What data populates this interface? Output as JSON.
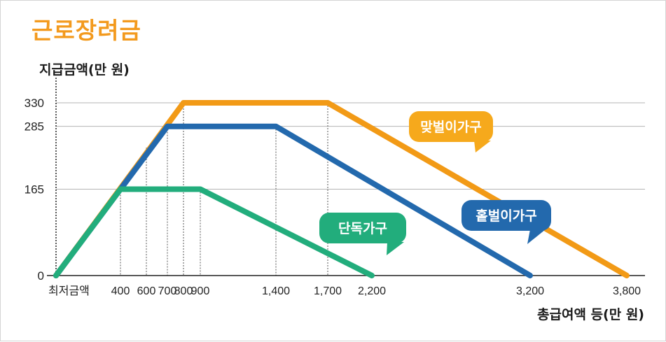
{
  "header": {
    "title": "근로장려금"
  },
  "chart_data": {
    "type": "line",
    "title": "근로장려금",
    "ylabel": "지급금액(만 원)",
    "xlabel": "총급여액 등(만 원)",
    "x_ticks": [
      {
        "value": 0,
        "label": "최저금액"
      },
      {
        "value": 400,
        "label": "400"
      },
      {
        "value": 600,
        "label": "600"
      },
      {
        "value": 700,
        "label": "700"
      },
      {
        "value": 800,
        "label": "800"
      },
      {
        "value": 900,
        "label": "900"
      },
      {
        "value": 1400,
        "label": "1,400"
      },
      {
        "value": 1700,
        "label": "1,700"
      },
      {
        "value": 2200,
        "label": "2,200"
      },
      {
        "value": 3200,
        "label": "3,200"
      },
      {
        "value": 3800,
        "label": "3,800"
      }
    ],
    "y_ticks": [
      {
        "value": 0,
        "label": "0"
      },
      {
        "value": 165,
        "label": "165"
      },
      {
        "value": 285,
        "label": "285"
      },
      {
        "value": 330,
        "label": "330"
      }
    ],
    "xlim": [
      0,
      3800
    ],
    "ylim": [
      0,
      330
    ],
    "grid": true,
    "series": [
      {
        "name": "맞벌이가구",
        "color": "#f29a16",
        "label_color": "#f6a91c",
        "points": [
          [
            0,
            0
          ],
          [
            800,
            330
          ],
          [
            1700,
            330
          ],
          [
            3800,
            0
          ]
        ]
      },
      {
        "name": "홑벌이가구",
        "color": "#2369ad",
        "label_color": "#2369ad",
        "points": [
          [
            0,
            0
          ],
          [
            700,
            285
          ],
          [
            1400,
            285
          ],
          [
            3200,
            0
          ]
        ]
      },
      {
        "name": "단독가구",
        "color": "#22ad7c",
        "label_color": "#22ad7c",
        "points": [
          [
            0,
            0
          ],
          [
            400,
            165
          ],
          [
            900,
            165
          ],
          [
            2200,
            0
          ]
        ]
      }
    ],
    "colors": {
      "title": "#f39a1e",
      "grid": "#b4b4b4",
      "axis": "#222222"
    }
  }
}
